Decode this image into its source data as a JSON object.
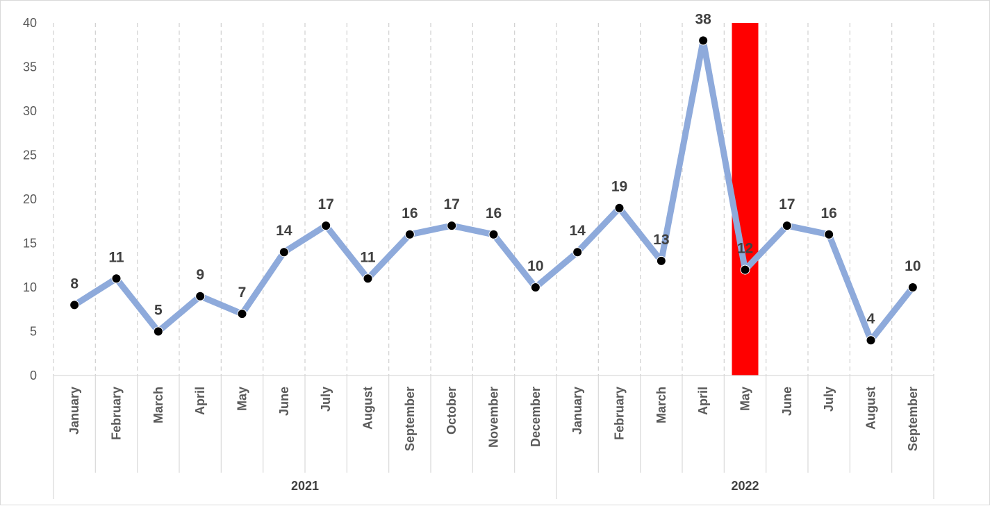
{
  "chart_data": {
    "type": "line",
    "categories": [
      "January",
      "February",
      "March",
      "April",
      "May",
      "June",
      "July",
      "August",
      "September",
      "October",
      "November",
      "December",
      "January",
      "February",
      "March",
      "April",
      "May",
      "June",
      "July",
      "August",
      "September"
    ],
    "groups": [
      {
        "label": "2021",
        "count": 12
      },
      {
        "label": "2022",
        "count": 9
      }
    ],
    "series": [
      {
        "values": [
          8,
          11,
          5,
          9,
          7,
          14,
          17,
          11,
          16,
          17,
          16,
          10,
          14,
          19,
          13,
          38,
          12,
          17,
          16,
          4,
          10
        ]
      }
    ],
    "highlight": {
      "index": 16,
      "color": "#ff0000"
    },
    "ylim": [
      0,
      40
    ],
    "yticks": [
      0,
      5,
      10,
      15,
      20,
      25,
      30,
      35,
      40
    ],
    "grid": "vertical-dashed",
    "line_color": "#8eaadb",
    "marker_color": "#000000",
    "title": "",
    "xlabel": "",
    "ylabel": ""
  }
}
